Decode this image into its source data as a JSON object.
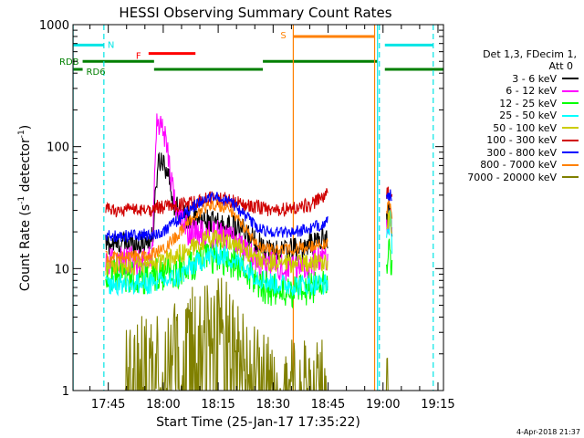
{
  "chart_data": {
    "type": "line",
    "title": "HESSI Observing Summary Count Rates",
    "xlabel": "Start Time (25-Jan-17 17:35:22)",
    "ylabel": "Count Rate (s",
    "ylabel_sup1": "-1",
    "ylabel_mid": " detector",
    "ylabel_sup2": "-1",
    "ylabel_end": ")",
    "yscale": "log",
    "ylim": [
      1,
      1000
    ],
    "y_ticks": [
      "1",
      "10",
      "100",
      "1000"
    ],
    "x_ticks": [
      "17:45",
      "18:00",
      "18:15",
      "18:30",
      "18:45",
      "19:00",
      "19:15"
    ],
    "x_tick_minutes": [
      1065,
      1080,
      1095,
      1110,
      1125,
      1140,
      1155
    ],
    "xlim_minutes": [
      1055.37,
      1156.5
    ],
    "legend_header": [
      "Det 1,3, FDecim 1,",
      "Att 0"
    ],
    "timestamp": "4-Apr-2018 21:37",
    "flags": [
      {
        "label": "N",
        "color": "#00e5e5",
        "segments": [
          [
            1055.4,
            1063.8
          ],
          [
            1140.5,
            1153.7
          ]
        ],
        "y": 680
      },
      {
        "label": "F",
        "color": "#ff0000",
        "segments": [
          [
            1076.0,
            1088.8
          ]
        ],
        "y": 580
      },
      {
        "label": "S",
        "color": "#ff8000",
        "segments": [
          [
            1115.5,
            1137.7
          ]
        ],
        "y": 800
      },
      {
        "label": "RDB",
        "color": "#007f00",
        "segments": [
          [
            1058.0,
            1077.5
          ],
          [
            1107.2,
            1138.5
          ]
        ],
        "y": 500
      },
      {
        "label": "RD6",
        "color": "#007f00",
        "segments": [
          [
            1055.4,
            1058.0
          ],
          [
            1077.5,
            1107.2
          ],
          [
            1140.5,
            1156.5
          ]
        ],
        "y": 430
      }
    ],
    "vlines": [
      {
        "t": 1055.4,
        "color": "#00e5e5",
        "style": "solid"
      },
      {
        "t": 1063.8,
        "color": "#00e5e5",
        "style": "dashed"
      },
      {
        "t": 1115.5,
        "color": "#ff8000",
        "style": "solid"
      },
      {
        "t": 1137.7,
        "color": "#ff8000",
        "style": "solid"
      },
      {
        "t": 1138.5,
        "color": "#00e5e5",
        "style": "solid"
      },
      {
        "t": 1139.0,
        "color": "#00e5e5",
        "style": "dashed"
      },
      {
        "t": 1153.7,
        "color": "#00e5e5",
        "style": "dashed"
      }
    ],
    "series": [
      {
        "name": "3 - 6 keV",
        "color": "#000000",
        "noise": 0.1,
        "gap": [
          1125.0,
          1140.9
        ],
        "points": [
          [
            1064.3,
            16
          ],
          [
            1069,
            16
          ],
          [
            1074,
            16
          ],
          [
            1076,
            17
          ],
          [
            1077.2,
            18
          ],
          [
            1078.5,
            75
          ],
          [
            1080,
            80
          ],
          [
            1081.5,
            55
          ],
          [
            1083,
            34
          ],
          [
            1085,
            28
          ],
          [
            1088,
            25
          ],
          [
            1091,
            25
          ],
          [
            1095,
            23
          ],
          [
            1098,
            22
          ],
          [
            1101,
            21
          ],
          [
            1104,
            18
          ],
          [
            1107,
            15.5
          ],
          [
            1110,
            14
          ],
          [
            1113,
            14
          ],
          [
            1116,
            14.5
          ],
          [
            1119,
            15
          ],
          [
            1122,
            17
          ],
          [
            1124.5,
            18
          ],
          [
            1140.9,
            25
          ],
          [
            1142,
            30
          ],
          [
            1142.5,
            22
          ]
        ]
      },
      {
        "name": "6 - 12 keV",
        "color": "#ff00ff",
        "noise": 0.12,
        "gap": [
          1125.0,
          1140.9
        ],
        "points": [
          [
            1064.3,
            11.5
          ],
          [
            1070,
            11.5
          ],
          [
            1075,
            11.5
          ],
          [
            1077,
            13
          ],
          [
            1078.2,
            170
          ],
          [
            1079.5,
            150
          ],
          [
            1081,
            110
          ],
          [
            1082.5,
            45
          ],
          [
            1084,
            27
          ],
          [
            1087,
            20
          ],
          [
            1090,
            19
          ],
          [
            1095,
            19
          ],
          [
            1100,
            17
          ],
          [
            1104,
            13
          ],
          [
            1107,
            11
          ],
          [
            1110,
            10.5
          ],
          [
            1115,
            10
          ],
          [
            1120,
            11
          ],
          [
            1124.5,
            12
          ],
          [
            1140.9,
            22
          ],
          [
            1142,
            27
          ],
          [
            1142.5,
            18
          ]
        ]
      },
      {
        "name": "12 - 25 keV",
        "color": "#00ff00",
        "noise": 0.14,
        "gap": [
          1125.0,
          1140.9
        ],
        "points": [
          [
            1064.3,
            8.5
          ],
          [
            1070,
            8.5
          ],
          [
            1076,
            8
          ],
          [
            1078,
            9
          ],
          [
            1082,
            9
          ],
          [
            1086,
            10
          ],
          [
            1090,
            11.5
          ],
          [
            1095,
            12.5
          ],
          [
            1100,
            11
          ],
          [
            1104,
            8.5
          ],
          [
            1108,
            7
          ],
          [
            1112,
            6.5
          ],
          [
            1118,
            6.5
          ],
          [
            1124.5,
            8
          ],
          [
            1140.9,
            10
          ],
          [
            1142,
            14
          ],
          [
            1142.5,
            9
          ]
        ]
      },
      {
        "name": "25 - 50 keV",
        "color": "#00ffff",
        "noise": 0.09,
        "gap": [
          1125.0,
          1140.9
        ],
        "points": [
          [
            1064.3,
            7.5
          ],
          [
            1070,
            7.5
          ],
          [
            1076,
            7.5
          ],
          [
            1080,
            7.8
          ],
          [
            1084,
            8.5
          ],
          [
            1088,
            10.5
          ],
          [
            1092,
            12.5
          ],
          [
            1095,
            13
          ],
          [
            1099,
            12
          ],
          [
            1103,
            10
          ],
          [
            1106,
            8.5
          ],
          [
            1110,
            7.5
          ],
          [
            1116,
            7.3
          ],
          [
            1124.5,
            7.5
          ],
          [
            1140.9,
            18
          ],
          [
            1142,
            25
          ],
          [
            1142.5,
            15
          ]
        ]
      },
      {
        "name": "50 - 100 keV",
        "color": "#cccc00",
        "noise": 0.08,
        "gap": [
          1125.0,
          1140.9
        ],
        "points": [
          [
            1064.3,
            10.5
          ],
          [
            1070,
            10.5
          ],
          [
            1076,
            10.8
          ],
          [
            1080,
            11.5
          ],
          [
            1084,
            13
          ],
          [
            1088,
            15
          ],
          [
            1092,
            17.5
          ],
          [
            1095,
            18
          ],
          [
            1099,
            16.5
          ],
          [
            1103,
            13.5
          ],
          [
            1106,
            12
          ],
          [
            1110,
            11
          ],
          [
            1116,
            11
          ],
          [
            1124.5,
            11.5
          ],
          [
            1140.9,
            22
          ],
          [
            1142,
            28
          ],
          [
            1142.5,
            18
          ]
        ]
      },
      {
        "name": "100 - 300 keV",
        "color": "#d00000",
        "noise": 0.06,
        "gap": [
          1125.0,
          1140.9
        ],
        "points": [
          [
            1064.3,
            30
          ],
          [
            1070,
            30
          ],
          [
            1076,
            30
          ],
          [
            1077.5,
            32
          ],
          [
            1082,
            32
          ],
          [
            1087,
            34
          ],
          [
            1091,
            37
          ],
          [
            1095,
            38
          ],
          [
            1099,
            36
          ],
          [
            1103,
            33
          ],
          [
            1106,
            32
          ],
          [
            1110,
            30
          ],
          [
            1115,
            31
          ],
          [
            1120,
            33
          ],
          [
            1124.5,
            40
          ],
          [
            1140.9,
            40
          ],
          [
            1142,
            43
          ],
          [
            1142.5,
            38
          ]
        ]
      },
      {
        "name": "300 - 800 keV",
        "color": "#0000ff",
        "noise": 0.05,
        "gap": [
          1125.0,
          1140.9
        ],
        "points": [
          [
            1064.3,
            18.5
          ],
          [
            1070,
            18.5
          ],
          [
            1076,
            19
          ],
          [
            1080,
            20
          ],
          [
            1084,
            25
          ],
          [
            1088,
            32
          ],
          [
            1092,
            37
          ],
          [
            1095,
            38
          ],
          [
            1099,
            34
          ],
          [
            1103,
            26
          ],
          [
            1106,
            21
          ],
          [
            1110,
            20
          ],
          [
            1115,
            20
          ],
          [
            1120,
            21
          ],
          [
            1124.5,
            24
          ],
          [
            1140.9,
            36
          ],
          [
            1142,
            40
          ],
          [
            1142.5,
            34
          ]
        ]
      },
      {
        "name": "800 - 7000 keV",
        "color": "#ff8000",
        "noise": 0.05,
        "gap": [
          1125.0,
          1140.9
        ],
        "points": [
          [
            1064.3,
            12.5
          ],
          [
            1070,
            12.5
          ],
          [
            1076,
            13
          ],
          [
            1080,
            14.5
          ],
          [
            1084,
            19
          ],
          [
            1088,
            26
          ],
          [
            1092,
            32
          ],
          [
            1095,
            33
          ],
          [
            1099,
            29
          ],
          [
            1103,
            20
          ],
          [
            1106,
            15
          ],
          [
            1110,
            14
          ],
          [
            1115,
            14.5
          ],
          [
            1120,
            15
          ],
          [
            1124.5,
            16
          ],
          [
            1140.9,
            30
          ],
          [
            1142,
            34
          ],
          [
            1142.5,
            28
          ]
        ]
      },
      {
        "name": "7000 - 20000 keV",
        "color": "#808000",
        "noise": 0.38,
        "gap": [
          1125.0,
          1140.9
        ],
        "points": [
          [
            1069.5,
            1.6
          ],
          [
            1072,
            1.8
          ],
          [
            1076,
            1.7
          ],
          [
            1080,
            1.8
          ],
          [
            1084,
            2.3
          ],
          [
            1088,
            3.0
          ],
          [
            1092,
            3.6
          ],
          [
            1095,
            3.8
          ],
          [
            1099,
            3.2
          ],
          [
            1103,
            2.0
          ],
          [
            1106,
            1.5
          ],
          [
            1110,
            1.2
          ],
          [
            1116,
            1.1
          ],
          [
            1124.5,
            1.1
          ],
          [
            1141.5,
            1.0
          ]
        ]
      }
    ]
  }
}
